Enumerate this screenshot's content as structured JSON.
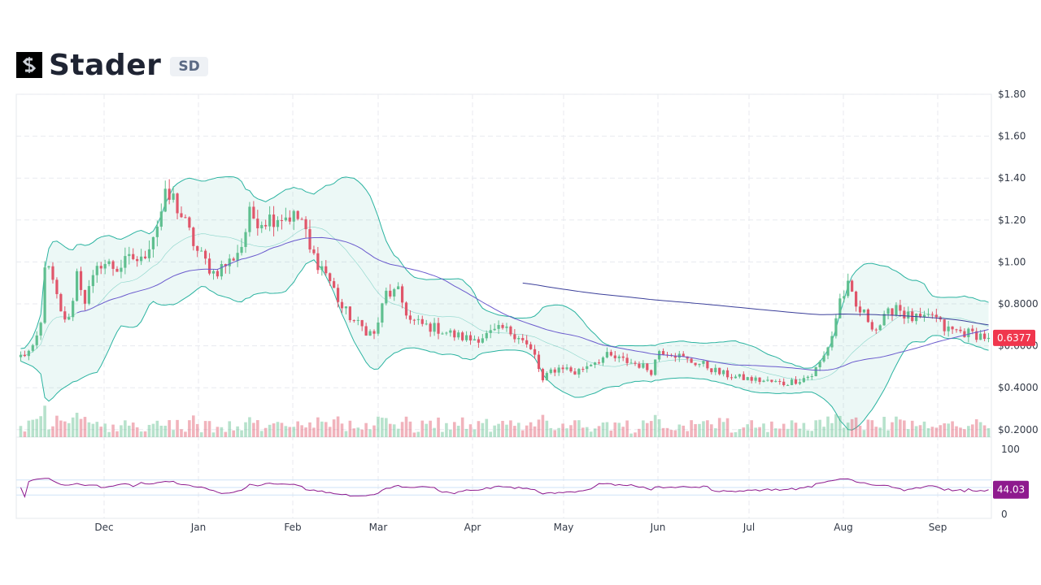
{
  "header": {
    "name": "Stader",
    "ticker": "SD",
    "logo_icon": "stader-logo-icon"
  },
  "colors": {
    "up": "#5fbf8f",
    "down": "#e0566a",
    "band": "#2ab3a0",
    "ma": "#6a5acd",
    "rsi": "#8e1a8e",
    "price_tag": "#f0364d",
    "rsi_tag": "#8e1a8e"
  },
  "chart_data": {
    "type": "candlestick",
    "y_ticks": [
      "$1.80",
      "$1.60",
      "$1.40",
      "$1.20",
      "$1.00",
      "$0.8000",
      "$0.6000",
      "$0.4000",
      "$0.2000"
    ],
    "y_range": [
      0.2,
      1.8
    ],
    "x_ticks": [
      "Dec",
      "Jan",
      "Feb",
      "Mar",
      "Apr",
      "May",
      "Jun",
      "Jul",
      "Aug",
      "Sep"
    ],
    "last_price_label": "0.6377",
    "last_price": 0.6377,
    "rsi_ticks": [
      "100",
      "0"
    ],
    "rsi_range": [
      0,
      100
    ],
    "rsi_last_label": "44.03",
    "rsi_last": 44.03,
    "price_anchors": [
      [
        0,
        0.55
      ],
      [
        3,
        0.58
      ],
      [
        5,
        0.7
      ],
      [
        6,
        1.0
      ],
      [
        8,
        0.9
      ],
      [
        10,
        0.75
      ],
      [
        12,
        0.72
      ],
      [
        14,
        0.95
      ],
      [
        16,
        0.82
      ],
      [
        20,
        1.0
      ],
      [
        24,
        0.97
      ],
      [
        28,
        1.02
      ],
      [
        30,
        1.0
      ],
      [
        34,
        1.18
      ],
      [
        36,
        1.3
      ],
      [
        38,
        1.3
      ],
      [
        40,
        1.22
      ],
      [
        44,
        1.05
      ],
      [
        48,
        0.95
      ],
      [
        52,
        1.0
      ],
      [
        55,
        1.08
      ],
      [
        57,
        1.22
      ],
      [
        60,
        1.2
      ],
      [
        64,
        1.22
      ],
      [
        67,
        1.22
      ],
      [
        70,
        1.2
      ],
      [
        72,
        1.05
      ],
      [
        76,
        0.95
      ],
      [
        80,
        0.78
      ],
      [
        84,
        0.7
      ],
      [
        88,
        0.65
      ],
      [
        91,
        0.85
      ],
      [
        94,
        0.85
      ],
      [
        97,
        0.72
      ],
      [
        100,
        0.7
      ],
      [
        104,
        0.68
      ],
      [
        108,
        0.65
      ],
      [
        112,
        0.63
      ],
      [
        116,
        0.65
      ],
      [
        120,
        0.68
      ],
      [
        124,
        0.65
      ],
      [
        128,
        0.55
      ],
      [
        130,
        0.43
      ],
      [
        132,
        0.48
      ],
      [
        135,
        0.5
      ],
      [
        138,
        0.47
      ],
      [
        142,
        0.52
      ],
      [
        146,
        0.55
      ],
      [
        150,
        0.53
      ],
      [
        154,
        0.51
      ],
      [
        157,
        0.48
      ],
      [
        159,
        0.58
      ],
      [
        162,
        0.57
      ],
      [
        166,
        0.53
      ],
      [
        170,
        0.51
      ],
      [
        174,
        0.47
      ],
      [
        178,
        0.45
      ],
      [
        182,
        0.44
      ],
      [
        186,
        0.43
      ],
      [
        190,
        0.42
      ],
      [
        194,
        0.44
      ],
      [
        197,
        0.46
      ],
      [
        200,
        0.55
      ],
      [
        202,
        0.65
      ],
      [
        204,
        0.82
      ],
      [
        206,
        0.88
      ],
      [
        208,
        0.78
      ],
      [
        210,
        0.75
      ],
      [
        213,
        0.68
      ],
      [
        216,
        0.75
      ],
      [
        218,
        0.8
      ],
      [
        220,
        0.75
      ],
      [
        222,
        0.73
      ],
      [
        225,
        0.72
      ],
      [
        227,
        0.75
      ],
      [
        230,
        0.68
      ],
      [
        233,
        0.67
      ],
      [
        236,
        0.66
      ],
      [
        239,
        0.65
      ],
      [
        241,
        0.6377
      ]
    ]
  }
}
